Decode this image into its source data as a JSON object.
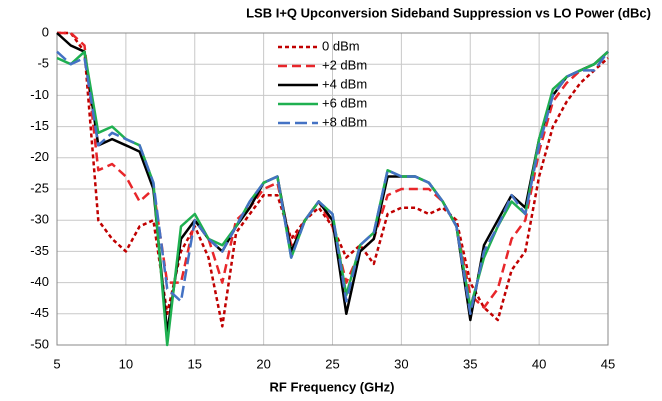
{
  "chart_data": {
    "type": "line",
    "title": "LSB I+Q Upconversion Sideband Suppression vs LO Power (dBc)",
    "x_label": "RF Frequency (GHz)",
    "x": [
      5,
      6,
      7,
      8,
      9,
      10,
      11,
      12,
      13,
      14,
      15,
      16,
      17,
      18,
      19,
      20,
      21,
      22,
      23,
      24,
      25,
      26,
      27,
      28,
      29,
      30,
      31,
      32,
      33,
      34,
      35,
      36,
      37,
      38,
      39,
      40,
      41,
      42,
      43,
      44,
      45
    ],
    "series": [
      {
        "name": "0 dBm",
        "color": "#c00000",
        "dash": "4,3",
        "values": [
          0,
          0,
          -3,
          -30,
          -33,
          -35,
          -31,
          -30,
          -45,
          -35,
          -31,
          -36,
          -47,
          -32,
          -29,
          -26,
          -26,
          -33,
          -30,
          -28,
          -31,
          -36,
          -34,
          -37,
          -29,
          -28,
          -28,
          -29,
          -28,
          -30,
          -40,
          -44,
          -46,
          -38,
          -35,
          -23,
          -15,
          -11,
          -8,
          -6,
          -4
        ]
      },
      {
        "name": "+2 dBm",
        "color": "#e8262a",
        "dash": "9,5",
        "values": [
          0,
          0,
          -2,
          -22,
          -21,
          -23,
          -27,
          -25,
          -40,
          -40,
          -30,
          -33,
          -40,
          -30,
          -28,
          -25,
          -24,
          -34,
          -30,
          -27,
          -31,
          -40,
          -35,
          -33,
          -26,
          -25,
          -25,
          -25,
          -27,
          -31,
          -42,
          -44,
          -41,
          -33,
          -30,
          -19,
          -11,
          -8,
          -6,
          -5,
          -3
        ]
      },
      {
        "name": "+4 dBm",
        "color": "#000000",
        "dash": "",
        "values": [
          0,
          -2,
          -3,
          -18,
          -17,
          -18,
          -19,
          -25,
          -48,
          -33,
          -30,
          -33,
          -35,
          -31,
          -28,
          -24,
          -23,
          -35,
          -30,
          -27,
          -30,
          -45,
          -35,
          -33,
          -23,
          -23,
          -23,
          -24,
          -27,
          -31,
          -46,
          -34,
          -30,
          -26,
          -28,
          -17,
          -10,
          -7,
          -6,
          -5,
          -3
        ]
      },
      {
        "name": "+6 dBm",
        "color": "#1fb050",
        "dash": "",
        "values": [
          -4,
          -5,
          -3,
          -16,
          -15,
          -17,
          -18,
          -24,
          -50,
          -31,
          -29,
          -33,
          -34,
          -31,
          -27,
          -24,
          -23,
          -36,
          -30,
          -27,
          -29,
          -42,
          -34,
          -32,
          -22,
          -23,
          -23,
          -24,
          -27,
          -31,
          -44,
          -36,
          -31,
          -27,
          -29,
          -17,
          -9,
          -7,
          -6,
          -5,
          -3
        ]
      },
      {
        "name": "+8 dBm",
        "color": "#4472c4",
        "dash": "12,5",
        "values": [
          -3,
          -5,
          -4,
          -18,
          -16,
          -17,
          -18,
          -24,
          -41,
          -43,
          -30,
          -33,
          -35,
          -31,
          -27,
          -24,
          -23,
          -36,
          -30,
          -27,
          -29,
          -43,
          -34,
          -32,
          -22,
          -23,
          -23,
          -24,
          -27,
          -31,
          -45,
          -35,
          -31,
          -26,
          -29,
          -18,
          -10,
          -7,
          -6,
          -6,
          -3
        ]
      }
    ],
    "xlim": [
      5,
      45
    ],
    "xticks": [
      5,
      10,
      15,
      20,
      25,
      30,
      35,
      40,
      45
    ],
    "ylim": [
      -50,
      0
    ],
    "yticks": [
      0,
      -5,
      -10,
      -15,
      -20,
      -25,
      -30,
      -35,
      -40,
      -45,
      -50
    ],
    "grid": true,
    "legend": "top-center"
  }
}
